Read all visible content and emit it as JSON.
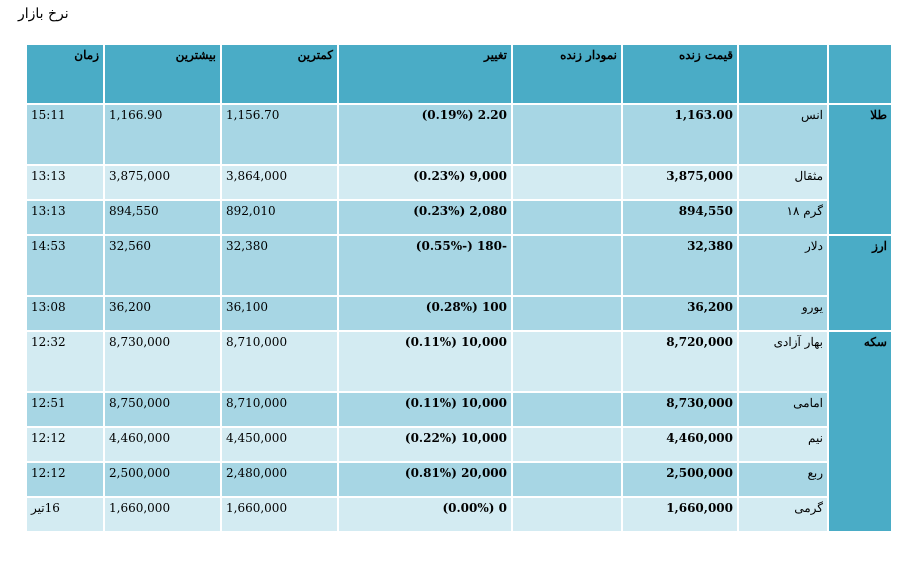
{
  "page_title": "نرخ بازار",
  "headers": {
    "category": "",
    "name": "",
    "price": "قیمت زنده",
    "chart": "نمودار زنده",
    "change": "تغییر",
    "low": "کمترین",
    "high": "بیشترین",
    "time": "زمان"
  },
  "groups": [
    {
      "category": "طلا",
      "rows": [
        {
          "name": "انس",
          "price": "1,163.00",
          "chart": "",
          "change": "2.20 (0.19%)",
          "low": "1,156.70",
          "high": "1,166.90",
          "time": "15:11"
        },
        {
          "name": "مثقال",
          "price": "3,875,000",
          "chart": "",
          "change": "9,000 (0.23%)",
          "low": "3,864,000",
          "high": "3,875,000",
          "time": "13:13"
        },
        {
          "name": "گرم ۱۸",
          "price": "894,550",
          "chart": "",
          "change": "2,080 (0.23%)",
          "low": "892,010",
          "high": "894,550",
          "time": "13:13"
        }
      ]
    },
    {
      "category": "ارز",
      "rows": [
        {
          "name": "دلار",
          "price": "32,380",
          "chart": "",
          "change": "-180 (-0.55%)",
          "low": "32,380",
          "high": "32,560",
          "time": "14:53"
        },
        {
          "name": "یورو",
          "price": "36,200",
          "chart": "",
          "change": "100 (0.28%)",
          "low": "36,100",
          "high": "36,200",
          "time": "13:08"
        }
      ]
    },
    {
      "category": "سکه",
      "rows": [
        {
          "name": "بهار آزادی",
          "price": "8,720,000",
          "chart": "",
          "change": "10,000 (0.11%)",
          "low": "8,710,000",
          "high": "8,730,000",
          "time": "12:32"
        },
        {
          "name": "امامی",
          "price": "8,730,000",
          "chart": "",
          "change": "10,000 (0.11%)",
          "low": "8,710,000",
          "high": "8,750,000",
          "time": "12:51"
        },
        {
          "name": "نیم",
          "price": "4,460,000",
          "chart": "",
          "change": "10,000 (0.22%)",
          "low": "4,450,000",
          "high": "4,460,000",
          "time": "12:12"
        },
        {
          "name": "ربع",
          "price": "2,500,000",
          "chart": "",
          "change": "20,000 (0.81%)",
          "low": "2,480,000",
          "high": "2,500,000",
          "time": "12:12"
        },
        {
          "name": "گرمی",
          "price": "1,660,000",
          "chart": "",
          "change": "0 (0.00%)",
          "low": "1,660,000",
          "high": "1,660,000",
          "time": "16تیر"
        }
      ]
    }
  ]
}
